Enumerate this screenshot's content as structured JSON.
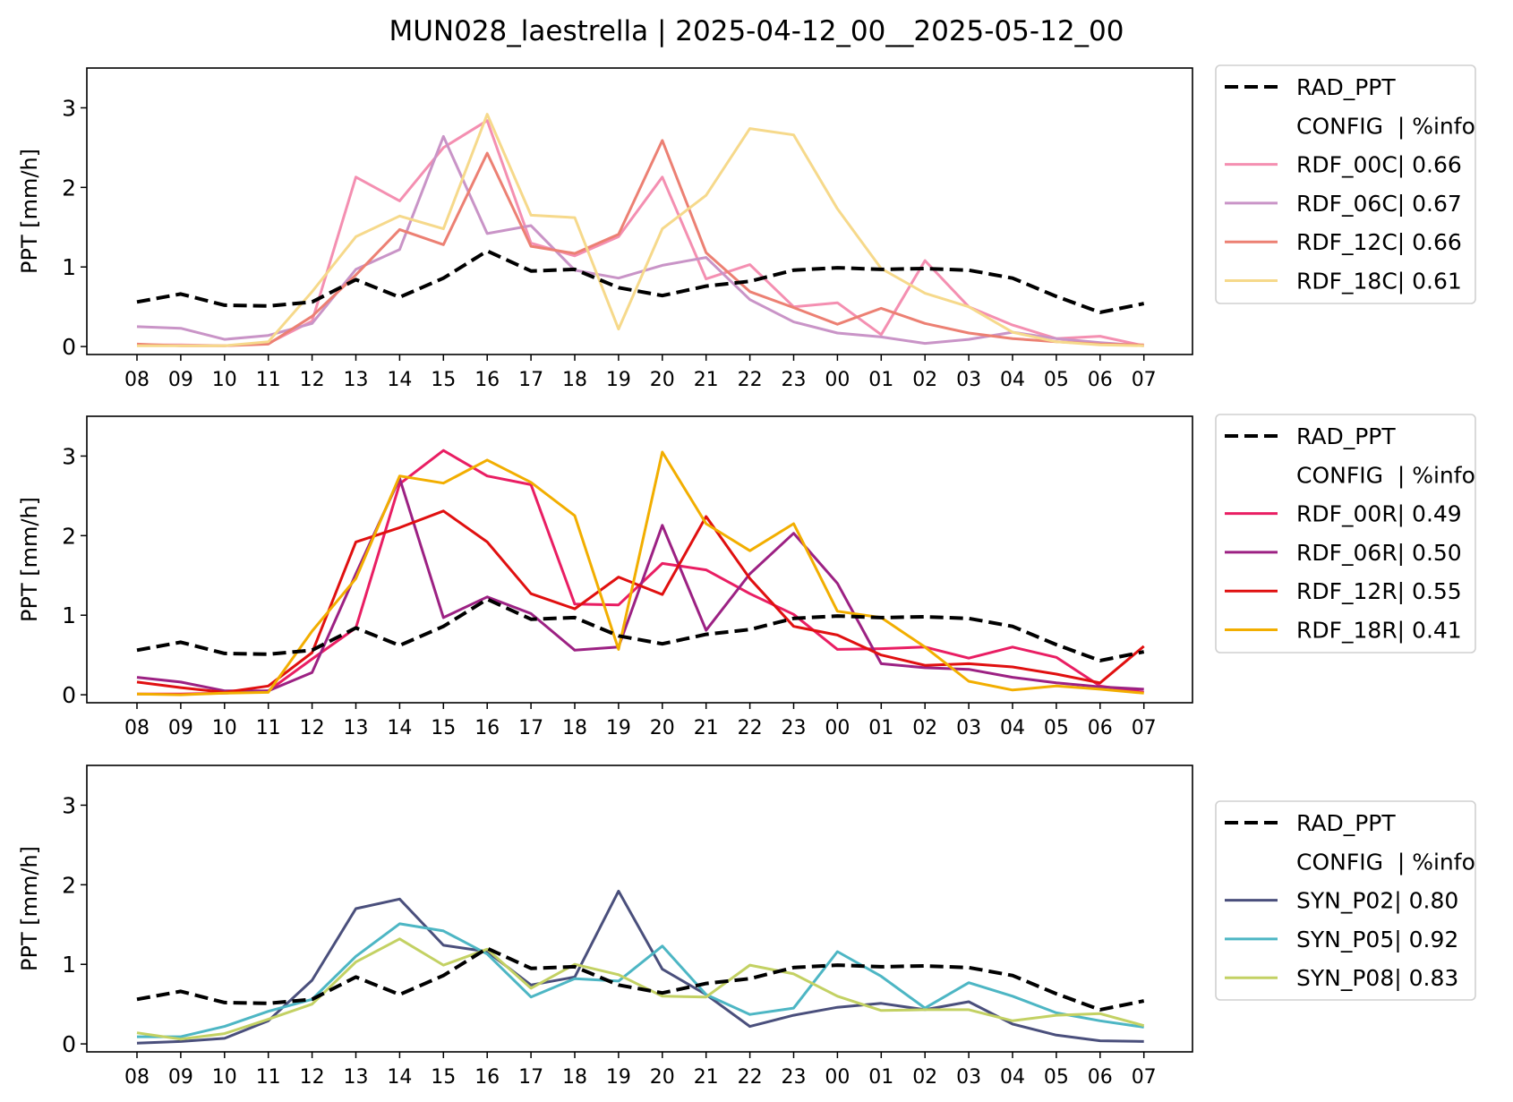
{
  "figure": {
    "title": "MUN028_laestrella | 2025-04-12_00__2025-05-12_00"
  },
  "chart_data": [
    {
      "type": "line",
      "ylabel": "PPT [mm/h]",
      "ylim": [
        -0.1,
        3.5
      ],
      "yticks": [
        0,
        1,
        2,
        3
      ],
      "categories": [
        "08",
        "09",
        "10",
        "11",
        "12",
        "13",
        "14",
        "15",
        "16",
        "17",
        "18",
        "19",
        "20",
        "21",
        "22",
        "23",
        "00",
        "01",
        "02",
        "03",
        "04",
        "05",
        "06",
        "07"
      ],
      "legend": {
        "header": "CONFIG  | %info",
        "placement": "right-top"
      },
      "series": [
        {
          "name": "RAD_PPT",
          "color": "#000000",
          "dashed": true,
          "width": 4,
          "values": [
            0.56,
            0.66,
            0.52,
            0.51,
            0.56,
            0.84,
            0.62,
            0.86,
            1.2,
            0.95,
            0.97,
            0.74,
            0.64,
            0.76,
            0.82,
            0.96,
            0.99,
            0.97,
            0.98,
            0.96,
            0.86,
            0.63,
            0.43,
            0.54
          ]
        },
        {
          "name": "RDF_00C| 0.66",
          "color": "#f48fb1",
          "width": 3,
          "values": [
            0.02,
            0.02,
            0.01,
            0.04,
            0.32,
            2.13,
            1.83,
            2.5,
            2.84,
            1.3,
            1.14,
            1.38,
            2.13,
            0.85,
            1.03,
            0.5,
            0.55,
            0.15,
            1.08,
            0.5,
            0.27,
            0.1,
            0.13,
            0.01
          ]
        },
        {
          "name": "RDF_06C| 0.67",
          "color": "#c994c7",
          "width": 3,
          "values": [
            0.25,
            0.23,
            0.09,
            0.14,
            0.29,
            0.97,
            1.22,
            2.64,
            1.42,
            1.52,
            0.96,
            0.86,
            1.02,
            1.12,
            0.59,
            0.31,
            0.17,
            0.12,
            0.04,
            0.09,
            0.18,
            0.1,
            0.05,
            0.01
          ]
        },
        {
          "name": "RDF_12C| 0.66",
          "color": "#ec8073",
          "width": 3,
          "values": [
            0.03,
            0.01,
            0.01,
            0.03,
            0.38,
            0.9,
            1.47,
            1.28,
            2.43,
            1.26,
            1.17,
            1.41,
            2.59,
            1.18,
            0.69,
            0.49,
            0.28,
            0.48,
            0.29,
            0.17,
            0.1,
            0.06,
            0.03,
            0.02
          ]
        },
        {
          "name": "RDF_18C| 0.61",
          "color": "#f6d98b",
          "width": 3,
          "values": [
            0.01,
            0.01,
            0.01,
            0.06,
            0.69,
            1.38,
            1.64,
            1.48,
            2.92,
            1.65,
            1.62,
            0.22,
            1.48,
            1.9,
            2.74,
            2.66,
            1.73,
            0.98,
            0.67,
            0.5,
            0.18,
            0.06,
            0.02,
            0.01
          ]
        }
      ]
    },
    {
      "type": "line",
      "ylabel": "PPT [mm/h]",
      "ylim": [
        -0.1,
        3.5
      ],
      "yticks": [
        0,
        1,
        2,
        3
      ],
      "categories": [
        "08",
        "09",
        "10",
        "11",
        "12",
        "13",
        "14",
        "15",
        "16",
        "17",
        "18",
        "19",
        "20",
        "21",
        "22",
        "23",
        "00",
        "01",
        "02",
        "03",
        "04",
        "05",
        "06",
        "07"
      ],
      "legend": {
        "header": "CONFIG  | %info",
        "placement": "right-top"
      },
      "series": [
        {
          "name": "RAD_PPT",
          "color": "#000000",
          "dashed": true,
          "width": 4,
          "values": [
            0.56,
            0.66,
            0.52,
            0.51,
            0.56,
            0.84,
            0.62,
            0.86,
            1.2,
            0.95,
            0.97,
            0.74,
            0.64,
            0.76,
            0.82,
            0.96,
            0.99,
            0.97,
            0.98,
            0.96,
            0.86,
            0.63,
            0.43,
            0.54
          ]
        },
        {
          "name": "RDF_00R| 0.49",
          "color": "#e91e63",
          "width": 3,
          "values": [
            0.01,
            0.01,
            0.02,
            0.05,
            0.45,
            0.84,
            2.65,
            3.07,
            2.75,
            2.64,
            1.14,
            1.13,
            1.65,
            1.57,
            1.27,
            1.01,
            0.57,
            0.58,
            0.6,
            0.46,
            0.6,
            0.47,
            0.11,
            0.03
          ]
        },
        {
          "name": "RDF_06R| 0.50",
          "color": "#9c2183",
          "width": 3,
          "values": [
            0.22,
            0.16,
            0.05,
            0.05,
            0.28,
            1.52,
            2.72,
            0.97,
            1.23,
            1.02,
            0.56,
            0.6,
            2.13,
            0.81,
            1.52,
            2.03,
            1.4,
            0.39,
            0.34,
            0.32,
            0.22,
            0.15,
            0.1,
            0.07
          ]
        },
        {
          "name": "RDF_12R| 0.55",
          "color": "#e01010",
          "width": 3,
          "values": [
            0.16,
            0.09,
            0.03,
            0.11,
            0.53,
            1.92,
            2.1,
            2.31,
            1.92,
            1.27,
            1.08,
            1.48,
            1.26,
            2.24,
            1.46,
            0.86,
            0.75,
            0.5,
            0.37,
            0.39,
            0.35,
            0.26,
            0.15,
            0.61
          ]
        },
        {
          "name": "RDF_18R| 0.41",
          "color": "#f2ae00",
          "width": 3,
          "values": [
            0.01,
            0.0,
            0.02,
            0.03,
            0.8,
            1.46,
            2.75,
            2.66,
            2.95,
            2.67,
            2.25,
            0.57,
            3.05,
            2.15,
            1.81,
            2.15,
            1.05,
            0.97,
            0.6,
            0.17,
            0.06,
            0.11,
            0.07,
            0.02
          ]
        }
      ]
    },
    {
      "type": "line",
      "ylabel": "PPT [mm/h]",
      "ylim": [
        -0.1,
        3.5
      ],
      "yticks": [
        0,
        1,
        2,
        3
      ],
      "categories": [
        "08",
        "09",
        "10",
        "11",
        "12",
        "13",
        "14",
        "15",
        "16",
        "17",
        "18",
        "19",
        "20",
        "21",
        "22",
        "23",
        "00",
        "01",
        "02",
        "03",
        "04",
        "05",
        "06",
        "07"
      ],
      "legend": {
        "header": "CONFIG  | %info",
        "placement": "right-center"
      },
      "series": [
        {
          "name": "RAD_PPT",
          "color": "#000000",
          "dashed": true,
          "width": 4,
          "values": [
            0.56,
            0.66,
            0.52,
            0.51,
            0.56,
            0.84,
            0.62,
            0.86,
            1.2,
            0.95,
            0.97,
            0.74,
            0.64,
            0.76,
            0.82,
            0.96,
            0.99,
            0.97,
            0.98,
            0.96,
            0.86,
            0.63,
            0.43,
            0.54
          ]
        },
        {
          "name": "SYN_P02| 0.80",
          "color": "#4a4f7c",
          "width": 3,
          "values": [
            0.01,
            0.03,
            0.07,
            0.29,
            0.8,
            1.7,
            1.82,
            1.24,
            1.16,
            0.74,
            0.84,
            1.92,
            0.94,
            0.62,
            0.22,
            0.36,
            0.46,
            0.51,
            0.43,
            0.53,
            0.25,
            0.11,
            0.04,
            0.03
          ]
        },
        {
          "name": "SYN_P05| 0.92",
          "color": "#4db6c4",
          "width": 3,
          "values": [
            0.09,
            0.09,
            0.22,
            0.41,
            0.56,
            1.1,
            1.51,
            1.42,
            1.13,
            0.59,
            0.82,
            0.79,
            1.23,
            0.62,
            0.37,
            0.45,
            1.16,
            0.85,
            0.45,
            0.77,
            0.6,
            0.39,
            0.29,
            0.21
          ]
        },
        {
          "name": "SYN_P08| 0.83",
          "color": "#c3d163",
          "width": 3,
          "values": [
            0.14,
            0.06,
            0.13,
            0.31,
            0.5,
            1.03,
            1.32,
            0.99,
            1.19,
            0.7,
            1.0,
            0.87,
            0.6,
            0.59,
            0.99,
            0.88,
            0.6,
            0.42,
            0.43,
            0.43,
            0.29,
            0.36,
            0.38,
            0.23
          ]
        }
      ]
    }
  ]
}
